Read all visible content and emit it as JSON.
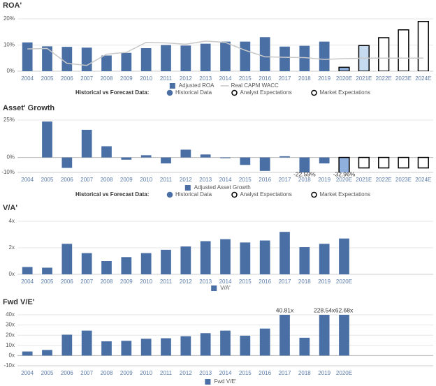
{
  "chart_data": [
    {
      "type": "bar",
      "title": "ROA'",
      "categories": [
        "2004",
        "2005",
        "2006",
        "2007",
        "2008",
        "2009",
        "2010",
        "2011",
        "2012",
        "2013",
        "2014",
        "2015",
        "2016",
        "2017",
        "2018",
        "2019",
        "2020E",
        "2021E",
        "2022E",
        "2023E",
        "2024E"
      ],
      "series": [
        {
          "name": "Adjusted ROA",
          "color": "#4a6fa5",
          "values": [
            11,
            9.5,
            9.3,
            9,
            6,
            7,
            8.8,
            10,
            9.8,
            10.5,
            11.3,
            11.3,
            13,
            9.4,
            9.7,
            11.3,
            1.5,
            9.8,
            12.8,
            15.8,
            19
          ],
          "colors": [
            "#4a6fa5",
            "#4a6fa5",
            "#4a6fa5",
            "#4a6fa5",
            "#4a6fa5",
            "#4a6fa5",
            "#4a6fa5",
            "#4a6fa5",
            "#4a6fa5",
            "#4a6fa5",
            "#4a6fa5",
            "#4a6fa5",
            "#4a6fa5",
            "#4a6fa5",
            "#4a6fa5",
            "#4a6fa5",
            "#8fb0dc",
            "#c6dbf0",
            "#ffffff",
            "#ffffff",
            "#ffffff"
          ],
          "edgecolors": [
            null,
            null,
            null,
            null,
            null,
            null,
            null,
            null,
            null,
            null,
            null,
            null,
            null,
            null,
            null,
            null,
            "#000000",
            "#000000",
            "#000000",
            "#000000",
            "#000000"
          ]
        },
        {
          "name": "Real CAPM WACC",
          "type": "line",
          "color": "#c8c8c8",
          "values": [
            8.5,
            8.7,
            3,
            2.2,
            6.5,
            7.2,
            11,
            10.8,
            10.3,
            11.5,
            11,
            8,
            5.5,
            5.3,
            5.2,
            4.5,
            4.8,
            5,
            5,
            5,
            5
          ]
        }
      ],
      "ylim": [
        0,
        20
      ],
      "yticks": [
        {
          "value": 0,
          "label": "0%"
        },
        {
          "value": 10,
          "label": "10%"
        },
        {
          "value": 20,
          "label": "20%"
        }
      ],
      "grid": true,
      "forecast_legend": {
        "title": "Historical vs Forecast Data:",
        "items": [
          {
            "name": "Historical Data",
            "color": "#4a6fa5"
          },
          {
            "name": "Analyst Expectations",
            "color": "#ffffff"
          },
          {
            "name": "Market Expectations",
            "color": "#ffffff"
          }
        ]
      }
    },
    {
      "type": "bar",
      "title": "Asset' Growth",
      "categories": [
        "2004",
        "2005",
        "2006",
        "2007",
        "2008",
        "2009",
        "2010",
        "2011",
        "2012",
        "2013",
        "2014",
        "2015",
        "2016",
        "2017",
        "2018",
        "2019",
        "2020E",
        "2021E",
        "2022E",
        "2023E",
        "2024E"
      ],
      "series": [
        {
          "name": "Adjusted Asset Growth",
          "color": "#4a6fa5",
          "values": [
            0,
            24,
            -7,
            18.5,
            7.5,
            -1.5,
            1.5,
            -4,
            5.2,
            2,
            -0.5,
            -5,
            -9,
            0.8,
            -22.59,
            -4,
            -32.96,
            -7,
            -7,
            -7,
            -7
          ],
          "value_labels": [
            null,
            null,
            null,
            null,
            null,
            null,
            null,
            null,
            null,
            null,
            null,
            null,
            null,
            null,
            "-22.59%",
            null,
            "-32.96%",
            null,
            null,
            null,
            null
          ],
          "colors": [
            "#4a6fa5",
            "#4a6fa5",
            "#4a6fa5",
            "#4a6fa5",
            "#4a6fa5",
            "#4a6fa5",
            "#4a6fa5",
            "#4a6fa5",
            "#4a6fa5",
            "#4a6fa5",
            "#4a6fa5",
            "#4a6fa5",
            "#4a6fa5",
            "#4a6fa5",
            "#4a6fa5",
            "#4a6fa5",
            "#8fb0dc",
            "#ffffff",
            "#ffffff",
            "#ffffff",
            "#ffffff"
          ],
          "edgecolors": [
            null,
            null,
            null,
            null,
            null,
            null,
            null,
            null,
            null,
            null,
            null,
            null,
            null,
            null,
            null,
            null,
            "#000000",
            "#000000",
            "#000000",
            "#000000",
            "#000000"
          ]
        }
      ],
      "ylim": [
        -10,
        25
      ],
      "yticks": [
        {
          "value": -10,
          "label": "-10%"
        },
        {
          "value": 0,
          "label": "0%"
        },
        {
          "value": 25,
          "label": "25%"
        }
      ],
      "grid": true,
      "forecast_legend": {
        "title": "Historical vs Forecast Data:",
        "items": [
          {
            "name": "Historical Data",
            "color": "#4a6fa5"
          },
          {
            "name": "Analyst Expectations",
            "color": "#ffffff"
          },
          {
            "name": "Market Expectations",
            "color": "#ffffff"
          }
        ]
      }
    },
    {
      "type": "bar",
      "title": "V/A'",
      "categories": [
        "2004",
        "2005",
        "2006",
        "2007",
        "2008",
        "2009",
        "2010",
        "2011",
        "2012",
        "2013",
        "2014",
        "2015",
        "2016",
        "2017",
        "2018",
        "2019",
        "2020E",
        null,
        null,
        null,
        null
      ],
      "series": [
        {
          "name": "V/A'",
          "color": "#4a6fa5",
          "values": [
            0.55,
            0.5,
            2.3,
            1.6,
            1.0,
            1.3,
            1.6,
            1.85,
            2.1,
            2.5,
            2.65,
            2.4,
            2.55,
            3.2,
            2.05,
            2.3,
            2.7,
            null,
            null,
            null,
            null
          ]
        }
      ],
      "ylim": [
        0,
        4
      ],
      "yticks": [
        {
          "value": 0,
          "label": "0x"
        },
        {
          "value": 2,
          "label": "2x"
        },
        {
          "value": 4,
          "label": "4x"
        }
      ],
      "grid": true
    },
    {
      "type": "bar",
      "title": "Fwd V/E'",
      "categories": [
        "2004",
        "2005",
        "2006",
        "2007",
        "2008",
        "2009",
        "2010",
        "2011",
        "2012",
        "2013",
        "2014",
        "2015",
        "2016",
        "2017",
        "2018",
        "2019",
        "2020E",
        null,
        null,
        null,
        null
      ],
      "series": [
        {
          "name": "Fwd V/E'",
          "color": "#4a6fa5",
          "values": [
            4,
            5.5,
            20.5,
            24.5,
            14,
            14.5,
            16.5,
            17,
            19,
            22,
            24.5,
            19.5,
            26.5,
            40.81,
            17.5,
            228.54,
            62.68,
            null,
            null,
            null,
            null
          ],
          "value_labels": [
            null,
            null,
            null,
            null,
            null,
            null,
            null,
            null,
            null,
            null,
            null,
            null,
            null,
            "40.81x",
            null,
            "228.54x",
            "62.68x",
            null,
            null,
            null,
            null
          ]
        }
      ],
      "ylim": [
        -10,
        40
      ],
      "yticks": [
        {
          "value": -10,
          "label": "-10x"
        },
        {
          "value": 0,
          "label": "0x"
        },
        {
          "value": 10,
          "label": "10x"
        },
        {
          "value": 20,
          "label": "20x"
        },
        {
          "value": 30,
          "label": "30x"
        },
        {
          "value": 40,
          "label": "40x"
        }
      ],
      "grid": true
    }
  ]
}
